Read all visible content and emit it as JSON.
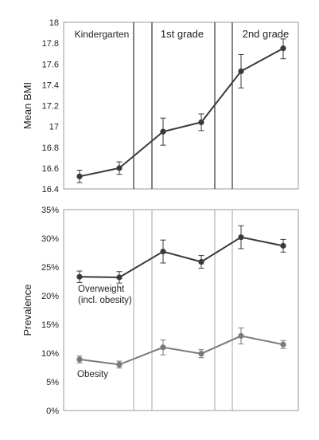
{
  "chart_data": [
    {
      "type": "line",
      "ylabel": "Mean BMI",
      "ylim": [
        16.4,
        18.0
      ],
      "yticks": [
        16.4,
        16.6,
        16.8,
        17,
        17.2,
        17.4,
        17.6,
        17.8,
        18
      ],
      "ytick_labels": [
        "16.4",
        "16.6",
        "16.8",
        "17",
        "17.2",
        "17.4",
        "17.6",
        "17.8",
        "18"
      ],
      "periods": [
        "Kindergarten",
        "1st grade",
        "2nd grade"
      ],
      "grid": false,
      "series": [
        {
          "color": "#3a3a3a",
          "values": [
            16.52,
            16.6,
            16.95,
            17.04,
            17.53,
            17.75
          ],
          "err_low": [
            16.46,
            16.54,
            16.82,
            16.96,
            17.37,
            17.65
          ],
          "err_high": [
            16.58,
            16.66,
            17.08,
            17.12,
            17.69,
            17.84
          ]
        }
      ]
    },
    {
      "type": "line",
      "ylabel": "Prevalence",
      "ylim": [
        0,
        35
      ],
      "yticks": [
        0,
        5,
        10,
        15,
        20,
        25,
        30,
        35
      ],
      "ytick_labels": [
        "0%",
        "5%",
        "10%",
        "15%",
        "20%",
        "25%",
        "30%",
        "35%"
      ],
      "grid": false,
      "series": [
        {
          "name": "Overweight (incl. obesity)",
          "name_lines": [
            "Overweight",
            "(incl. obesity)"
          ],
          "color": "#3a3a3a",
          "values": [
            23.3,
            23.2,
            27.7,
            25.9,
            30.2,
            28.7
          ],
          "err_low": [
            22.3,
            22.2,
            25.7,
            24.8,
            28.2,
            27.6
          ],
          "err_high": [
            24.3,
            24.2,
            29.7,
            27.0,
            32.2,
            29.8
          ]
        },
        {
          "name": "Obesity",
          "color": "#7a7a7a",
          "values": [
            8.9,
            8.0,
            11.0,
            9.9,
            13.0,
            11.5
          ],
          "err_low": [
            8.3,
            7.4,
            9.7,
            9.2,
            11.6,
            10.8
          ],
          "err_high": [
            9.5,
            8.6,
            12.3,
            10.6,
            14.4,
            12.2
          ]
        }
      ]
    }
  ]
}
